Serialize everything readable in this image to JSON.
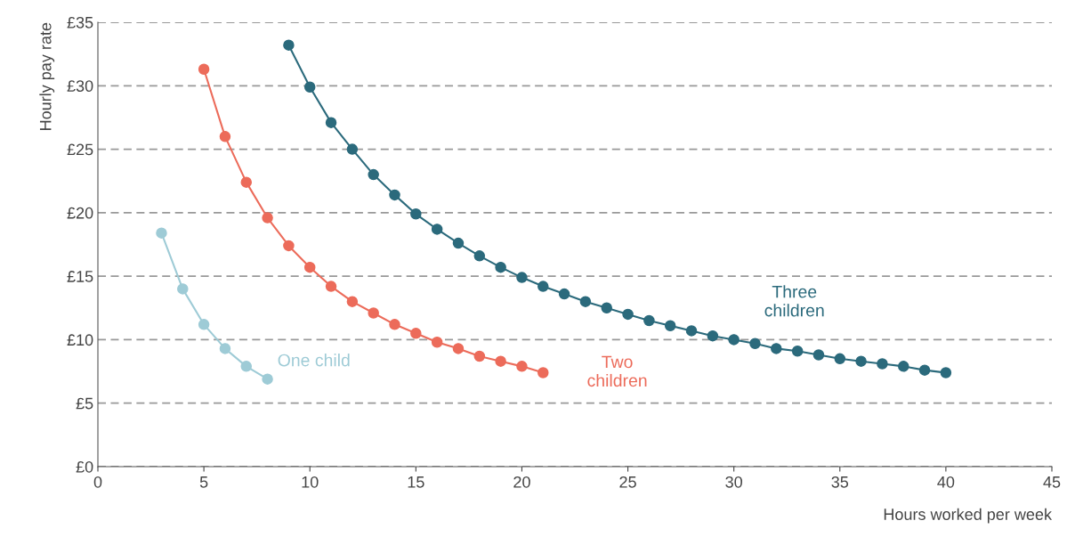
{
  "chart_data": {
    "type": "line",
    "xlabel": "Hours worked per week",
    "ylabel": "Hourly pay rate",
    "xlim": [
      0,
      45
    ],
    "xticks": [
      0,
      5,
      10,
      15,
      20,
      25,
      30,
      35,
      40,
      45
    ],
    "ylim": [
      0,
      35
    ],
    "yticks": [
      {
        "value": 0,
        "label": "£0"
      },
      {
        "value": 5,
        "label": "£5"
      },
      {
        "value": 10,
        "label": "£10"
      },
      {
        "value": 15,
        "label": "£15"
      },
      {
        "value": 20,
        "label": "£20"
      },
      {
        "value": 25,
        "label": "£25"
      },
      {
        "value": 30,
        "label": "£30"
      },
      {
        "value": 35,
        "label": "£35"
      }
    ],
    "grid": "y",
    "legend": false,
    "marker": "circle",
    "line_style": "solid",
    "series": [
      {
        "name": "One child",
        "color": "#9ecbd6",
        "x": [
          3,
          4,
          5,
          6,
          7,
          8
        ],
        "values": [
          18.4,
          14.0,
          11.2,
          9.3,
          7.9,
          6.9
        ]
      },
      {
        "name": "Two\nchildren",
        "color": "#ec6b5a",
        "x": [
          5,
          6,
          7,
          8,
          9,
          10,
          11,
          12,
          13,
          14,
          15,
          16,
          17,
          18,
          19,
          20,
          21
        ],
        "values": [
          31.3,
          26.0,
          22.4,
          19.6,
          17.4,
          15.7,
          14.2,
          13.0,
          12.1,
          11.2,
          10.5,
          9.8,
          9.3,
          8.7,
          8.3,
          7.9,
          7.4
        ]
      },
      {
        "name": "Three\nchildren",
        "color": "#2b6a7c",
        "x": [
          9,
          10,
          11,
          12,
          13,
          14,
          15,
          16,
          17,
          18,
          19,
          20,
          21,
          22,
          23,
          24,
          25,
          26,
          27,
          28,
          29,
          30,
          31,
          32,
          33,
          34,
          35,
          36,
          37,
          38,
          39,
          40
        ],
        "values": [
          33.2,
          29.9,
          27.1,
          25.0,
          23.0,
          21.4,
          19.9,
          18.7,
          17.6,
          16.6,
          15.7,
          14.9,
          14.2,
          13.6,
          13.0,
          12.5,
          12.0,
          11.5,
          11.1,
          10.7,
          10.3,
          10.0,
          9.7,
          9.3,
          9.1,
          8.8,
          8.5,
          8.3,
          8.1,
          7.9,
          7.6,
          7.4
        ]
      }
    ]
  }
}
